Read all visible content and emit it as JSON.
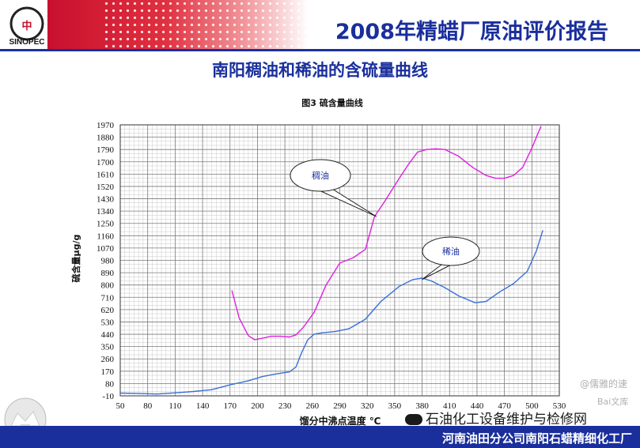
{
  "header": {
    "title": "2008年精蜡厂原油评价报告",
    "logo_text": "SINOPEC"
  },
  "slide": {
    "subtitle": "南阳稠油和稀油的含硫量曲线"
  },
  "footer": {
    "org": "河南油田分公司南阳石蜡精细化工厂",
    "wechat_account": "石油化工设备维护与检修网"
  },
  "watermarks": {
    "user": "@儒雅的速",
    "site": "Bai文库"
  },
  "colors": {
    "header_red": "#c8102e",
    "title_blue": "#1a2f9c",
    "heavy_oil": "#e020e0",
    "light_oil": "#3a6fd8"
  },
  "chart_data": {
    "type": "line",
    "title": "图3  硫含量曲线",
    "xlabel": "馏分中沸点温度  ℃",
    "ylabel": "硫含量μg/g",
    "xlim": [
      50,
      530
    ],
    "ylim": [
      -10,
      1970
    ],
    "x_ticks": [
      50,
      80,
      110,
      140,
      170,
      200,
      230,
      260,
      290,
      320,
      350,
      380,
      410,
      440,
      470,
      500,
      530
    ],
    "y_ticks": [
      -10,
      80,
      170,
      260,
      350,
      440,
      530,
      620,
      710,
      800,
      890,
      980,
      1070,
      1160,
      1250,
      1340,
      1430,
      1520,
      1610,
      1700,
      1790,
      1880,
      1970
    ],
    "grid": true,
    "series": [
      {
        "name": "稠油",
        "color": "#e020e0",
        "x": [
          172,
          180,
          190,
          197,
          205,
          215,
          225,
          235,
          242,
          250,
          262,
          275,
          290,
          305,
          318,
          328,
          340,
          355,
          365,
          375,
          385,
          395,
          405,
          420,
          435,
          450,
          460,
          470,
          480,
          490,
          500,
          510
        ],
        "y": [
          760,
          560,
          430,
          400,
          410,
          425,
          425,
          420,
          435,
          490,
          600,
          800,
          960,
          1000,
          1060,
          1300,
          1420,
          1580,
          1680,
          1770,
          1790,
          1795,
          1790,
          1740,
          1660,
          1600,
          1580,
          1580,
          1600,
          1660,
          1800,
          1960
        ]
      },
      {
        "name": "稀油",
        "color": "#3a6fd8",
        "x": [
          50,
          70,
          90,
          110,
          130,
          150,
          170,
          190,
          205,
          220,
          235,
          242,
          248,
          255,
          262,
          270,
          285,
          300,
          318,
          335,
          355,
          370,
          380,
          390,
          405,
          420,
          438,
          450,
          465,
          480,
          495,
          505,
          512
        ],
        "y": [
          10,
          8,
          3,
          12,
          22,
          35,
          70,
          100,
          130,
          150,
          165,
          200,
          300,
          400,
          440,
          450,
          460,
          480,
          550,
          680,
          790,
          840,
          850,
          830,
          780,
          720,
          670,
          680,
          750,
          810,
          900,
          1050,
          1200
        ]
      }
    ],
    "annotations": [
      {
        "text": "稠油",
        "target_x": 330,
        "target_y": 1300
      },
      {
        "text": "稀油",
        "target_x": 380,
        "target_y": 840
      }
    ]
  }
}
